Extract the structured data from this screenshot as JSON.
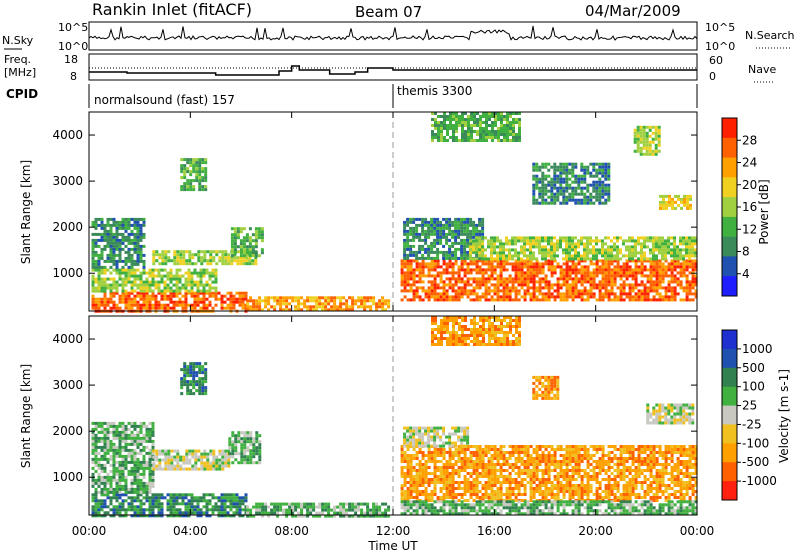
{
  "header": {
    "station": "Rankin Inlet (fitACF)",
    "beam": "Beam 07",
    "date": "04/Mar/2009"
  },
  "nsky_panel": {
    "left_label": "N.Sky",
    "right_label": "N.Search",
    "left_ticks": [
      "10^5",
      "10^0"
    ],
    "right_ticks": [
      "10^5",
      "10^0"
    ]
  },
  "freq_panel": {
    "left_label_top": "Freq.",
    "left_label_bottom": "[MHz]",
    "right_label": "Nave",
    "left_ticks": [
      "18",
      "8"
    ],
    "right_ticks": [
      "60",
      "0"
    ]
  },
  "cpid_panel": {
    "label": "CPID",
    "modes": [
      {
        "name": "normalsound (fast) 157",
        "start_hour": 0
      },
      {
        "name": "themis 3300",
        "start_hour": 12
      }
    ]
  },
  "x_axis": {
    "label": "Time UT",
    "ticks": [
      "00:00",
      "04:00",
      "08:00",
      "12:00",
      "16:00",
      "20:00",
      "00:00"
    ],
    "tick_hours": [
      0,
      4,
      8,
      12,
      16,
      20,
      24
    ]
  },
  "colors": {
    "power": [
      "#1e1eff",
      "#2050b0",
      "#3a8a5a",
      "#40b040",
      "#a0d040",
      "#f0d020",
      "#ffa000",
      "#ff6000",
      "#ff2000"
    ],
    "velocity": [
      "#ff2010",
      "#ff6000",
      "#ffa000",
      "#f0c020",
      "#c8c8c0",
      "#40b040",
      "#308050",
      "#2050b0",
      "#1e30d0"
    ]
  },
  "chart_data": [
    {
      "type": "heatmap",
      "name": "power",
      "ylabel": "Slant Range [km]",
      "ylim": [
        180,
        4500
      ],
      "yticks": [
        1000,
        2000,
        3000,
        4000
      ],
      "xlim": [
        0,
        24
      ],
      "colorbar": {
        "label": "Power [dB]",
        "ticks": [
          "4",
          "8",
          "12",
          "16",
          "20",
          "24",
          "28"
        ],
        "tick_values": [
          4,
          8,
          12,
          16,
          20,
          24,
          28
        ],
        "range": [
          0,
          32
        ]
      },
      "regions": [
        {
          "x0": 0.1,
          "x1": 6.2,
          "y0": 180,
          "y1": 600,
          "level": 28
        },
        {
          "x0": 0.1,
          "x1": 5.0,
          "y0": 600,
          "y1": 1100,
          "level": 16
        },
        {
          "x0": 0.1,
          "x1": 2.2,
          "y0": 1100,
          "y1": 2200,
          "level": 8
        },
        {
          "x0": 2.5,
          "x1": 6.6,
          "y0": 1200,
          "y1": 1500,
          "level": 14
        },
        {
          "x0": 5.6,
          "x1": 6.8,
          "y0": 1400,
          "y1": 2000,
          "level": 12
        },
        {
          "x0": 6.2,
          "x1": 11.8,
          "y0": 180,
          "y1": 500,
          "level": 24
        },
        {
          "x0": 3.6,
          "x1": 4.6,
          "y0": 2800,
          "y1": 3500,
          "level": 10
        },
        {
          "x0": 12.3,
          "x1": 24.0,
          "y0": 400,
          "y1": 1300,
          "level": 26
        },
        {
          "x0": 12.4,
          "x1": 15.5,
          "y0": 1300,
          "y1": 2200,
          "level": 8
        },
        {
          "x0": 15.0,
          "x1": 24.0,
          "y0": 1300,
          "y1": 1800,
          "level": 14
        },
        {
          "x0": 13.5,
          "x1": 17.0,
          "y0": 3900,
          "y1": 4500,
          "level": 12
        },
        {
          "x0": 17.5,
          "x1": 20.5,
          "y0": 2500,
          "y1": 3400,
          "level": 6
        },
        {
          "x0": 22.5,
          "x1": 23.8,
          "y0": 2400,
          "y1": 2700,
          "level": 18
        },
        {
          "x0": 21.5,
          "x1": 22.5,
          "y0": 3600,
          "y1": 4200,
          "level": 14
        }
      ]
    },
    {
      "type": "heatmap",
      "name": "velocity",
      "ylabel": "Slant Range [km]",
      "ylim": [
        180,
        4500
      ],
      "yticks": [
        1000,
        2000,
        3000,
        4000
      ],
      "xlim": [
        0,
        24
      ],
      "colorbar": {
        "label": "Velocity [m s-1]",
        "ticks": [
          "1000",
          "500",
          "100",
          "25",
          "-25",
          "-100",
          "-500",
          "-1000"
        ],
        "tick_values": [
          1000,
          500,
          100,
          25,
          -25,
          -100,
          -500,
          -1000
        ]
      },
      "regions": [
        {
          "x0": 0.1,
          "x1": 6.2,
          "y0": 180,
          "y1": 650,
          "level": 2
        },
        {
          "x0": 0.1,
          "x1": 2.5,
          "y0": 650,
          "y1": 2200,
          "level": 1
        },
        {
          "x0": 2.5,
          "x1": 5.5,
          "y0": 1200,
          "y1": 1600,
          "level": 0
        },
        {
          "x0": 5.5,
          "x1": 6.8,
          "y0": 1300,
          "y1": 2000,
          "level": 1
        },
        {
          "x0": 6.2,
          "x1": 11.8,
          "y0": 180,
          "y1": 450,
          "level": 1
        },
        {
          "x0": 3.6,
          "x1": 4.6,
          "y0": 2800,
          "y1": 3500,
          "level": 2
        },
        {
          "x0": 12.3,
          "x1": 24.0,
          "y0": 500,
          "y1": 1700,
          "level": -2
        },
        {
          "x0": 12.4,
          "x1": 15.0,
          "y0": 1700,
          "y1": 2100,
          "level": 0
        },
        {
          "x0": 12.3,
          "x1": 24.0,
          "y0": 180,
          "y1": 500,
          "level": 1
        },
        {
          "x0": 13.5,
          "x1": 17.0,
          "y0": 3900,
          "y1": 4500,
          "level": -2
        },
        {
          "x0": 22.0,
          "x1": 23.8,
          "y0": 2200,
          "y1": 2600,
          "level": 0
        },
        {
          "x0": 17.5,
          "x1": 18.5,
          "y0": 2700,
          "y1": 3200,
          "level": -2
        }
      ]
    }
  ]
}
